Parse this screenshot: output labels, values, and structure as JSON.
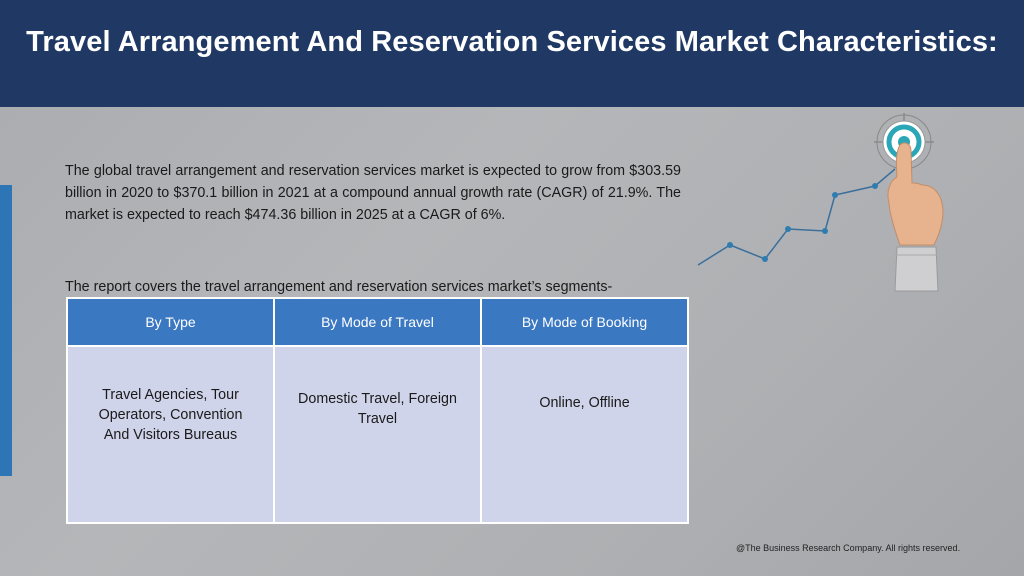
{
  "header": {
    "title": "Travel Arrangement And Reservation Services Market Characteristics:"
  },
  "content": {
    "paragraph1": "The global travel arrangement and reservation services market is expected to grow from $303.59 billion in 2020 to $370.1 billion in 2021 at a compound annual growth rate (CAGR) of 21.9%. The market is expected to reach $474.36 billion in 2025 at a CAGR of 6%.",
    "paragraph2": "The report covers the travel arrangement and reservation services market’s segments-"
  },
  "segments_table": {
    "headers": [
      "By Type",
      "By Mode of Travel",
      "By Mode of Booking"
    ],
    "cells": [
      "Travel Agencies, Tour Operators, Convention And Visitors Bureaus",
      "Domestic Travel, Foreign Travel",
      "Online, Offline"
    ]
  },
  "illustration": {
    "icon": "hand-touching-target-growth-icon",
    "line_color": "#3a6f9c",
    "target_color": "#2aa6b6"
  },
  "footer": {
    "copyright": "@The Business Research Company. All rights reserved."
  }
}
